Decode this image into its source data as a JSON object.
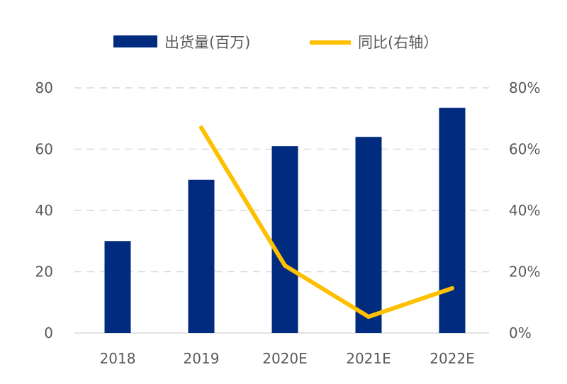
{
  "chart_data": {
    "type": "bar+line",
    "categories": [
      "2018",
      "2019",
      "2020E",
      "2021E",
      "2022E"
    ],
    "series": [
      {
        "name": "出货量(百万)",
        "type": "bar",
        "axis": "left",
        "color": "#002B7F",
        "values": [
          30,
          50,
          61,
          64,
          73.5
        ]
      },
      {
        "name": "同比(右轴）",
        "type": "line",
        "axis": "right",
        "color": "#FFC000",
        "values": [
          null,
          0.67,
          0.22,
          0.053,
          0.146
        ]
      }
    ],
    "left_axis": {
      "ylim": [
        0,
        80
      ],
      "ticks": [
        "0",
        "20",
        "40",
        "60",
        "80"
      ]
    },
    "right_axis": {
      "ylim": [
        0,
        0.8
      ],
      "ticks": [
        "0%",
        "20%",
        "40%",
        "60%",
        "80%"
      ]
    },
    "grid": true,
    "legend": "top"
  }
}
